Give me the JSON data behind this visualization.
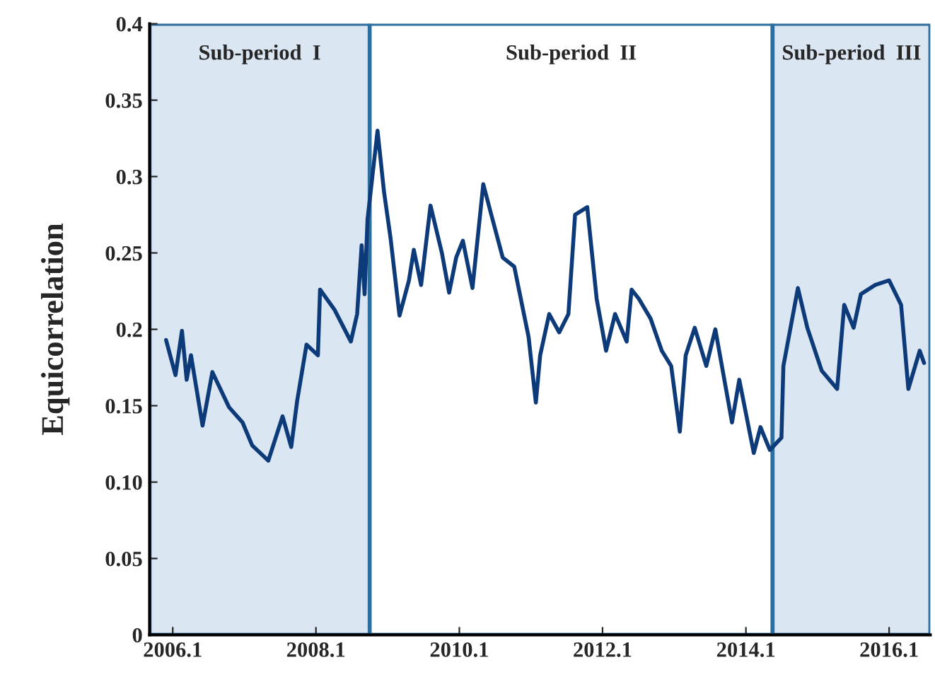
{
  "chart_data": {
    "type": "line",
    "ylabel": "Equicorrelation",
    "x": [
      "2005-11-28",
      "2006-01-15",
      "2006-02-17",
      "2006-03-13",
      "2006-04-04",
      "2006-06-02",
      "2006-07-22",
      "2006-10-15",
      "2006-12-23",
      "2007-02-10",
      "2007-05-03",
      "2007-07-15",
      "2007-08-28",
      "2007-09-27",
      "2007-11-14",
      "2008-01-11",
      "2008-01-22",
      "2008-04-04",
      "2008-06-27",
      "2008-07-29",
      "2008-08-21",
      "2008-09-05",
      "2008-09-20",
      "2008-11-10",
      "2008-12-13",
      "2009-01-15",
      "2009-03-02",
      "2009-04-19",
      "2009-05-14",
      "2009-06-20",
      "2009-08-07",
      "2009-10-04",
      "2009-11-10",
      "2009-12-16",
      "2010-01-19",
      "2010-03-09",
      "2010-05-03",
      "2010-06-13",
      "2010-08-10",
      "2010-10-08",
      "2010-12-20",
      "2011-01-26",
      "2011-02-17",
      "2011-04-04",
      "2011-05-25",
      "2011-07-11",
      "2011-08-14",
      "2011-10-15",
      "2011-12-02",
      "2012-01-19",
      "2012-03-05",
      "2012-05-03",
      "2012-05-28",
      "2012-07-04",
      "2012-09-02",
      "2012-10-29",
      "2012-12-16",
      "2013-01-29",
      "2013-02-28",
      "2013-04-15",
      "2013-06-13",
      "2013-07-29",
      "2013-10-22",
      "2013-11-28",
      "2014-02-10",
      "2014-03-16",
      "2014-05-03",
      "2014-07-01",
      "2014-07-11",
      "2014-09-23",
      "2014-11-10",
      "2015-01-22",
      "2015-04-11",
      "2015-05-17",
      "2015-07-04",
      "2015-08-10",
      "2015-10-22",
      "2016-01-01",
      "2016-03-02",
      "2016-04-08",
      "2016-06-05",
      "2016-06-27"
    ],
    "series": [
      {
        "color": "#0d3b7a",
        "values": [
          0.193,
          0.17,
          0.199,
          0.167,
          0.183,
          0.137,
          0.172,
          0.149,
          0.139,
          0.124,
          0.114,
          0.143,
          0.123,
          0.153,
          0.19,
          0.183,
          0.226,
          0.213,
          0.192,
          0.21,
          0.255,
          0.223,
          0.272,
          0.33,
          0.29,
          0.26,
          0.209,
          0.232,
          0.252,
          0.229,
          0.281,
          0.25,
          0.224,
          0.247,
          0.258,
          0.227,
          0.295,
          0.275,
          0.247,
          0.241,
          0.195,
          0.152,
          0.183,
          0.21,
          0.198,
          0.21,
          0.275,
          0.28,
          0.22,
          0.186,
          0.21,
          0.192,
          0.226,
          0.22,
          0.207,
          0.186,
          0.176,
          0.133,
          0.183,
          0.201,
          0.176,
          0.2,
          0.139,
          0.167,
          0.119,
          0.136,
          0.121,
          0.129,
          0.176,
          0.227,
          0.201,
          0.173,
          0.161,
          0.216,
          0.201,
          0.223,
          0.229,
          0.232,
          0.216,
          0.161,
          0.186,
          0.178
        ]
      }
    ],
    "xlim": [
      "2005-09-05",
      "2016-07-29"
    ],
    "xticks": [
      {
        "value": "2006-01-01",
        "label": "2006.1"
      },
      {
        "value": "2008-01-01",
        "label": "2008.1"
      },
      {
        "value": "2010-01-01",
        "label": "2010.1"
      },
      {
        "value": "2012-01-01",
        "label": "2012.1"
      },
      {
        "value": "2014-01-01",
        "label": "2014.1"
      },
      {
        "value": "2016-01-01",
        "label": "2016.1"
      }
    ],
    "ylim": [
      0,
      0.4
    ],
    "yticks": [
      0,
      0.05,
      {
        "value": 0.1,
        "label": "0.10"
      },
      0.15,
      0.2,
      0.25,
      0.3,
      0.35,
      0.4
    ],
    "bands": [
      {
        "axis": "x",
        "from": "2005-09-05",
        "to": "2008-10-01",
        "label": "Sub-period  I",
        "color": "#dae6f2"
      },
      {
        "axis": "x",
        "from": "2008-10-01",
        "to": "2014-05-17",
        "label": "Sub-period  II",
        "color": "#ffffff"
      },
      {
        "axis": "x",
        "from": "2014-05-17",
        "to": "2016-07-29",
        "label": "Sub-period  III",
        "color": "#dae6f2"
      }
    ],
    "grid": false,
    "legend": false,
    "marker": "none",
    "line_style": "solid"
  }
}
